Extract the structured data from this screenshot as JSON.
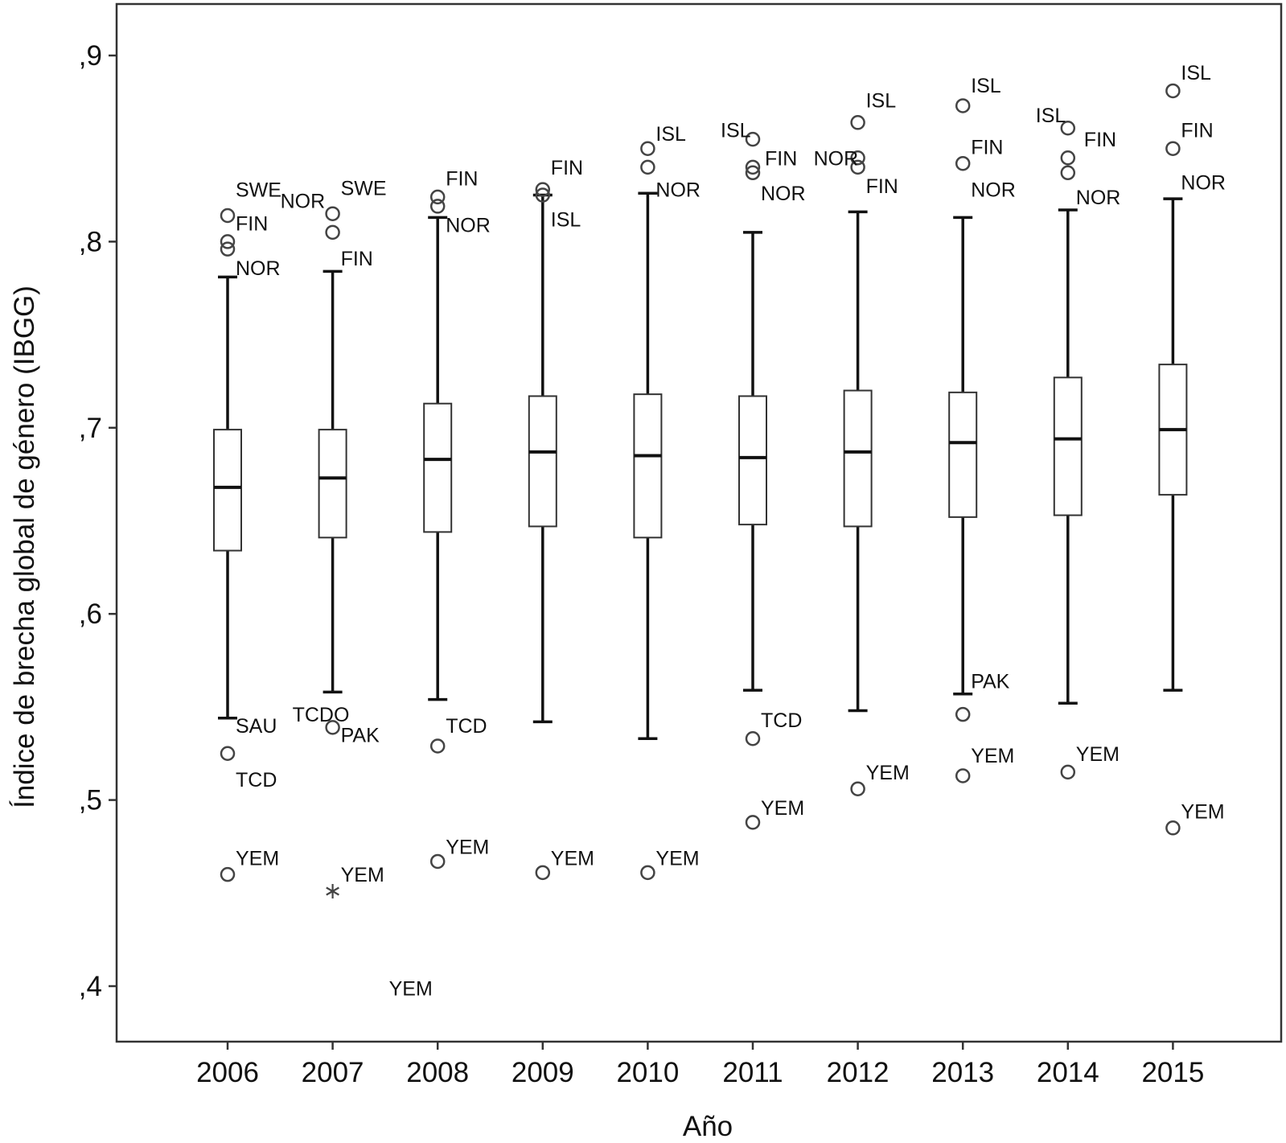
{
  "chart_data": {
    "type": "boxplot",
    "xlabel": "Año",
    "ylabel": "Índice de brecha global de género (IBGG)",
    "ylim": [
      0.372,
      0.93
    ],
    "yticks": [
      {
        "value": 0.4,
        "label": ",4"
      },
      {
        "value": 0.5,
        "label": ",5"
      },
      {
        "value": 0.6,
        "label": ",6"
      },
      {
        "value": 0.7,
        "label": ",7"
      },
      {
        "value": 0.8,
        "label": ",8"
      },
      {
        "value": 0.9,
        "label": ",9"
      }
    ],
    "categories": [
      "2006",
      "2007",
      "2008",
      "2009",
      "2010",
      "2011",
      "2012",
      "2013",
      "2014",
      "2015"
    ],
    "boxes": [
      {
        "year": "2006",
        "whisker_low": 0.544,
        "q1": 0.634,
        "median": 0.668,
        "q3": 0.699,
        "whisker_high": 0.781
      },
      {
        "year": "2007",
        "whisker_low": 0.558,
        "q1": 0.641,
        "median": 0.673,
        "q3": 0.699,
        "whisker_high": 0.784
      },
      {
        "year": "2008",
        "whisker_low": 0.554,
        "q1": 0.644,
        "median": 0.683,
        "q3": 0.713,
        "whisker_high": 0.813
      },
      {
        "year": "2009",
        "whisker_low": 0.542,
        "q1": 0.647,
        "median": 0.687,
        "q3": 0.717,
        "whisker_high": 0.825
      },
      {
        "year": "2010",
        "whisker_low": 0.533,
        "q1": 0.641,
        "median": 0.685,
        "q3": 0.718,
        "whisker_high": 0.826
      },
      {
        "year": "2011",
        "whisker_low": 0.559,
        "q1": 0.648,
        "median": 0.684,
        "q3": 0.717,
        "whisker_high": 0.805
      },
      {
        "year": "2012",
        "whisker_low": 0.548,
        "q1": 0.647,
        "median": 0.687,
        "q3": 0.72,
        "whisker_high": 0.816
      },
      {
        "year": "2013",
        "whisker_low": 0.557,
        "q1": 0.652,
        "median": 0.692,
        "q3": 0.719,
        "whisker_high": 0.813
      },
      {
        "year": "2014",
        "whisker_low": 0.552,
        "q1": 0.653,
        "median": 0.694,
        "q3": 0.727,
        "whisker_high": 0.817
      },
      {
        "year": "2015",
        "whisker_low": 0.559,
        "q1": 0.664,
        "median": 0.699,
        "q3": 0.734,
        "whisker_high": 0.823
      }
    ],
    "outliers": [
      {
        "year": "2006",
        "value": 0.814,
        "marker": "circle"
      },
      {
        "year": "2006",
        "value": 0.8,
        "marker": "circle"
      },
      {
        "year": "2006",
        "value": 0.796,
        "marker": "circle"
      },
      {
        "year": "2006",
        "value": 0.525,
        "marker": "circle"
      },
      {
        "year": "2006",
        "value": 0.46,
        "marker": "circle"
      },
      {
        "year": "2007",
        "value": 0.815,
        "marker": "circle"
      },
      {
        "year": "2007",
        "value": 0.805,
        "marker": "circle"
      },
      {
        "year": "2007",
        "value": 0.539,
        "marker": "circle"
      },
      {
        "year": "2007",
        "value": 0.451,
        "marker": "asterisk"
      },
      {
        "year": "2008",
        "value": 0.824,
        "marker": "circle"
      },
      {
        "year": "2008",
        "value": 0.819,
        "marker": "circle"
      },
      {
        "year": "2008",
        "value": 0.529,
        "marker": "circle"
      },
      {
        "year": "2008",
        "value": 0.467,
        "marker": "circle"
      },
      {
        "year": "2009",
        "value": 0.828,
        "marker": "circle"
      },
      {
        "year": "2009",
        "value": 0.825,
        "marker": "circle"
      },
      {
        "year": "2009",
        "value": 0.461,
        "marker": "circle"
      },
      {
        "year": "2010",
        "value": 0.85,
        "marker": "circle"
      },
      {
        "year": "2010",
        "value": 0.84,
        "marker": "circle"
      },
      {
        "year": "2010",
        "value": 0.461,
        "marker": "circle"
      },
      {
        "year": "2011",
        "value": 0.855,
        "marker": "circle"
      },
      {
        "year": "2011",
        "value": 0.84,
        "marker": "circle"
      },
      {
        "year": "2011",
        "value": 0.837,
        "marker": "circle"
      },
      {
        "year": "2011",
        "value": 0.533,
        "marker": "circle"
      },
      {
        "year": "2011",
        "value": 0.488,
        "marker": "circle"
      },
      {
        "year": "2012",
        "value": 0.864,
        "marker": "circle"
      },
      {
        "year": "2012",
        "value": 0.845,
        "marker": "circle"
      },
      {
        "year": "2012",
        "value": 0.84,
        "marker": "circle"
      },
      {
        "year": "2012",
        "value": 0.506,
        "marker": "circle"
      },
      {
        "year": "2013",
        "value": 0.873,
        "marker": "circle"
      },
      {
        "year": "2013",
        "value": 0.842,
        "marker": "circle"
      },
      {
        "year": "2013",
        "value": 0.546,
        "marker": "circle"
      },
      {
        "year": "2013",
        "value": 0.513,
        "marker": "circle"
      },
      {
        "year": "2014",
        "value": 0.861,
        "marker": "circle"
      },
      {
        "year": "2014",
        "value": 0.845,
        "marker": "circle"
      },
      {
        "year": "2014",
        "value": 0.837,
        "marker": "circle"
      },
      {
        "year": "2014",
        "value": 0.515,
        "marker": "circle"
      },
      {
        "year": "2015",
        "value": 0.881,
        "marker": "circle"
      },
      {
        "year": "2015",
        "value": 0.85,
        "marker": "circle"
      },
      {
        "year": "2015",
        "value": 0.485,
        "marker": "circle"
      }
    ],
    "annotations": [
      {
        "year": "2006",
        "value": 0.828,
        "text": "SWE"
      },
      {
        "year": "2006",
        "value": 0.81,
        "text": "FIN"
      },
      {
        "year": "2006",
        "value": 0.786,
        "text": "NOR"
      },
      {
        "year": "2006",
        "value": 0.54,
        "text": "SAU"
      },
      {
        "year": "2006",
        "value": 0.511,
        "text": "TCD"
      },
      {
        "year": "2006",
        "value": 0.469,
        "text": "YEM"
      },
      {
        "year": "2007",
        "value": 0.822,
        "text": "NOR"
      },
      {
        "year": "2007",
        "value": 0.829,
        "text": "SWE"
      },
      {
        "year": "2007",
        "value": 0.791,
        "text": "FIN"
      },
      {
        "year": "2007",
        "value": 0.546,
        "text": "TCDO"
      },
      {
        "year": "2007",
        "value": 0.535,
        "text": "PAK"
      },
      {
        "year": "2007",
        "value": 0.46,
        "text": "YEM"
      },
      {
        "year": "2007",
        "value": 0.399,
        "text": "YEM"
      },
      {
        "year": "2008",
        "value": 0.834,
        "text": "FIN"
      },
      {
        "year": "2008",
        "value": 0.809,
        "text": "NOR"
      },
      {
        "year": "2008",
        "value": 0.54,
        "text": "TCD"
      },
      {
        "year": "2008",
        "value": 0.475,
        "text": "YEM"
      },
      {
        "year": "2009",
        "value": 0.84,
        "text": "FIN"
      },
      {
        "year": "2009",
        "value": 0.812,
        "text": "ISL"
      },
      {
        "year": "2009",
        "value": 0.469,
        "text": "YEM"
      },
      {
        "year": "2010",
        "value": 0.858,
        "text": "ISL"
      },
      {
        "year": "2010",
        "value": 0.828,
        "text": "NOR"
      },
      {
        "year": "2010",
        "value": 0.469,
        "text": "YEM"
      },
      {
        "year": "2011",
        "value": 0.86,
        "text": "ISL"
      },
      {
        "year": "2011",
        "value": 0.845,
        "text": "FIN"
      },
      {
        "year": "2011",
        "value": 0.826,
        "text": "NOR"
      },
      {
        "year": "2011",
        "value": 0.543,
        "text": "TCD"
      },
      {
        "year": "2011",
        "value": 0.496,
        "text": "YEM"
      },
      {
        "year": "2012",
        "value": 0.845,
        "text": "NOR"
      },
      {
        "year": "2012",
        "value": 0.876,
        "text": "ISL"
      },
      {
        "year": "2012",
        "value": 0.83,
        "text": "FIN"
      },
      {
        "year": "2012",
        "value": 0.515,
        "text": "YEM"
      },
      {
        "year": "2013",
        "value": 0.884,
        "text": "ISL"
      },
      {
        "year": "2013",
        "value": 0.851,
        "text": "FIN"
      },
      {
        "year": "2013",
        "value": 0.828,
        "text": "NOR"
      },
      {
        "year": "2013",
        "value": 0.564,
        "text": "PAK"
      },
      {
        "year": "2013",
        "value": 0.524,
        "text": "YEM"
      },
      {
        "year": "2014",
        "value": 0.868,
        "text": "ISL"
      },
      {
        "year": "2014",
        "value": 0.855,
        "text": "FIN"
      },
      {
        "year": "2014",
        "value": 0.824,
        "text": "NOR"
      },
      {
        "year": "2014",
        "value": 0.525,
        "text": "YEM"
      },
      {
        "year": "2015",
        "value": 0.891,
        "text": "ISL"
      },
      {
        "year": "2015",
        "value": 0.86,
        "text": "FIN"
      },
      {
        "year": "2015",
        "value": 0.832,
        "text": "NOR"
      },
      {
        "year": "2015",
        "value": 0.494,
        "text": "YEM"
      }
    ],
    "grid": false,
    "legend": "none"
  }
}
